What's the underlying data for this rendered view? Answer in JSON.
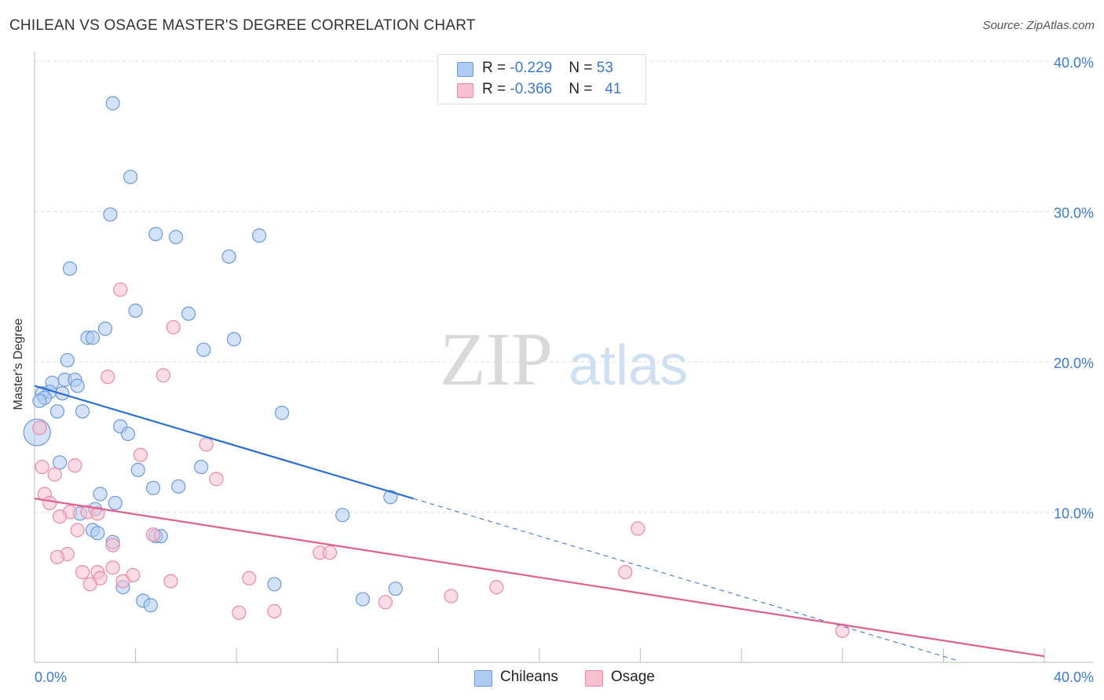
{
  "title": "CHILEAN VS OSAGE MASTER'S DEGREE CORRELATION CHART",
  "source": "Source: ZipAtlas.com",
  "watermark_zip": "ZIP",
  "watermark_atlas": "atlas",
  "legend": {
    "chileans": {
      "r_label": "R = ",
      "r_value": "-0.229",
      "n_label": "N = ",
      "n_value": "53"
    },
    "osage": {
      "r_label": "R = ",
      "r_value": "-0.366",
      "n_label": "N = ",
      "n_value": "41"
    }
  },
  "colors": {
    "chileans_fill": "#aecbf2",
    "chileans_stroke": "#6b9ad8",
    "chileans_line": "#2b6fd1",
    "osage_fill": "#f8bfd0",
    "osage_stroke": "#e88aa8",
    "osage_line": "#e0608d",
    "tick_label": "#3a7ad1"
  },
  "chart_data": {
    "type": "scatter",
    "title": "CHILEAN VS OSAGE MASTER'S DEGREE CORRELATION CHART",
    "xlabel": "",
    "ylabel": "Master's Degree",
    "xlim": [
      0,
      40
    ],
    "ylim": [
      0,
      40
    ],
    "x_tick_labels": [
      "0.0%",
      "40.0%"
    ],
    "y_ticks": [
      10,
      20,
      30,
      40
    ],
    "y_tick_labels": [
      "10.0%",
      "20.0%",
      "30.0%",
      "40.0%"
    ],
    "grid": true,
    "legend_position": "bottom",
    "series": [
      {
        "name": "Chileans",
        "points": [
          [
            3.1,
            37.2
          ],
          [
            3.8,
            32.3
          ],
          [
            3.0,
            29.8
          ],
          [
            4.8,
            28.5
          ],
          [
            5.6,
            28.3
          ],
          [
            8.9,
            28.4
          ],
          [
            7.7,
            27.0
          ],
          [
            1.4,
            26.2
          ],
          [
            4.0,
            23.4
          ],
          [
            6.1,
            23.2
          ],
          [
            2.8,
            22.2
          ],
          [
            2.1,
            21.6
          ],
          [
            2.3,
            21.6
          ],
          [
            7.9,
            21.5
          ],
          [
            6.7,
            20.8
          ],
          [
            1.3,
            20.1
          ],
          [
            1.2,
            18.8
          ],
          [
            1.6,
            18.8
          ],
          [
            1.7,
            18.4
          ],
          [
            0.7,
            18.6
          ],
          [
            0.6,
            18.0
          ],
          [
            0.3,
            17.9
          ],
          [
            1.1,
            17.9
          ],
          [
            0.4,
            17.6
          ],
          [
            0.2,
            17.4
          ],
          [
            0.9,
            16.7
          ],
          [
            1.9,
            16.7
          ],
          [
            9.8,
            16.6
          ],
          [
            3.4,
            15.7
          ],
          [
            3.7,
            15.2
          ],
          [
            0.1,
            15.3
          ],
          [
            1.0,
            13.3
          ],
          [
            4.1,
            12.8
          ],
          [
            6.6,
            13.0
          ],
          [
            2.6,
            11.2
          ],
          [
            4.7,
            11.6
          ],
          [
            5.7,
            11.7
          ],
          [
            14.1,
            11.0
          ],
          [
            3.2,
            10.6
          ],
          [
            2.4,
            10.2
          ],
          [
            1.8,
            9.9
          ],
          [
            12.2,
            9.8
          ],
          [
            2.3,
            8.8
          ],
          [
            2.5,
            8.6
          ],
          [
            4.8,
            8.4
          ],
          [
            5.0,
            8.4
          ],
          [
            3.1,
            8.0
          ],
          [
            3.5,
            5.0
          ],
          [
            9.5,
            5.2
          ],
          [
            14.3,
            4.9
          ],
          [
            4.3,
            4.1
          ],
          [
            4.6,
            3.8
          ],
          [
            13.0,
            4.2
          ]
        ],
        "trend": {
          "x": [
            0,
            15
          ],
          "y": [
            18.4,
            10.9
          ]
        },
        "trend_dashed": {
          "x": [
            15,
            40
          ],
          "y": [
            10.9,
            -1.6
          ]
        }
      },
      {
        "name": "Osage",
        "points": [
          [
            3.4,
            24.8
          ],
          [
            5.5,
            22.3
          ],
          [
            5.1,
            19.1
          ],
          [
            2.9,
            19.0
          ],
          [
            0.2,
            15.6
          ],
          [
            4.2,
            13.8
          ],
          [
            6.8,
            14.5
          ],
          [
            0.3,
            13.0
          ],
          [
            1.6,
            13.1
          ],
          [
            0.8,
            12.5
          ],
          [
            7.2,
            12.2
          ],
          [
            0.4,
            11.2
          ],
          [
            0.6,
            10.6
          ],
          [
            1.4,
            10.0
          ],
          [
            2.1,
            10.0
          ],
          [
            1.0,
            9.7
          ],
          [
            2.5,
            9.9
          ],
          [
            1.7,
            8.8
          ],
          [
            4.7,
            8.5
          ],
          [
            3.1,
            7.8
          ],
          [
            1.3,
            7.2
          ],
          [
            0.9,
            7.0
          ],
          [
            11.3,
            7.3
          ],
          [
            11.7,
            7.3
          ],
          [
            3.1,
            6.3
          ],
          [
            2.5,
            6.0
          ],
          [
            1.9,
            6.0
          ],
          [
            3.9,
            5.8
          ],
          [
            2.6,
            5.6
          ],
          [
            3.5,
            5.4
          ],
          [
            2.2,
            5.2
          ],
          [
            5.4,
            5.4
          ],
          [
            8.5,
            5.6
          ],
          [
            16.5,
            4.4
          ],
          [
            18.3,
            5.0
          ],
          [
            13.9,
            4.0
          ],
          [
            23.4,
            6.0
          ],
          [
            23.9,
            8.9
          ],
          [
            8.1,
            3.3
          ],
          [
            9.5,
            3.4
          ],
          [
            32.0,
            2.1
          ]
        ],
        "trend": {
          "x": [
            0,
            40
          ],
          "y": [
            10.9,
            0.4
          ]
        }
      }
    ]
  }
}
